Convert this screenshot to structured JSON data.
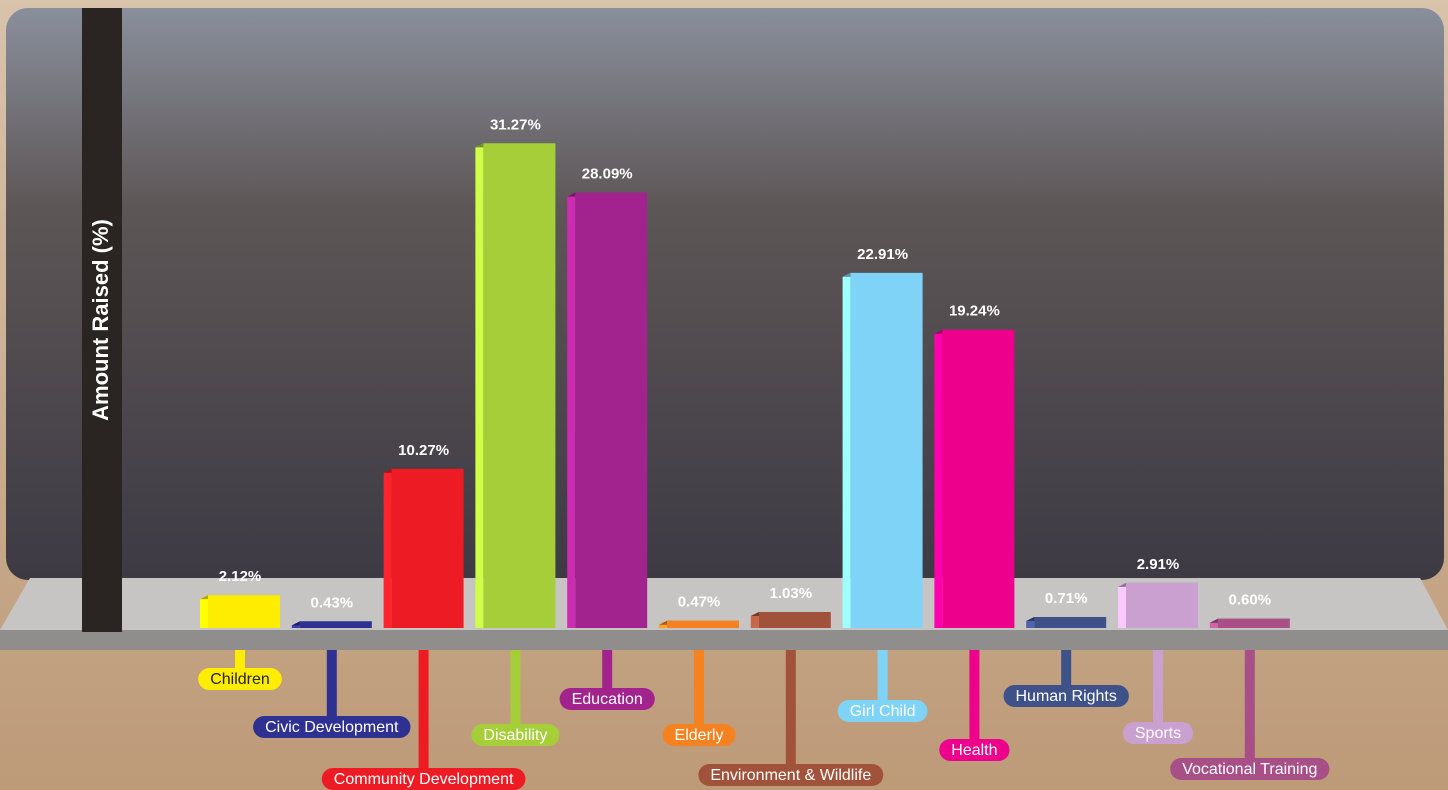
{
  "chart_data": {
    "type": "bar3d",
    "y_label": "Amount Raised (%)",
    "categories": [
      "Children",
      "Civic Development",
      "Community Development",
      "Disability",
      "Education",
      "Elderly",
      "Environment & Wildlife",
      "Girl Child",
      "Health",
      "Human Rights",
      "Sports",
      "Vocational Training"
    ],
    "values": [
      2.12,
      0.43,
      10.27,
      31.27,
      28.09,
      0.47,
      1.03,
      22.91,
      19.24,
      0.71,
      2.91,
      0.6
    ],
    "value_labels": [
      "2.12%",
      "0.43%",
      "10.27%",
      "31.27%",
      "28.09%",
      "0.47%",
      "1.03%",
      "22.91%",
      "19.24%",
      "0.71%",
      "2.91%",
      "0.60%"
    ],
    "colors": [
      "#ffed00",
      "#2e3192",
      "#ed1c24",
      "#a6ce39",
      "#a3238e",
      "#f58220",
      "#a0533a",
      "#7fd3f7",
      "#ec008c",
      "#3f5189",
      "#c9a0d0",
      "#a84f88"
    ],
    "ylim": [
      0,
      32
    ]
  }
}
